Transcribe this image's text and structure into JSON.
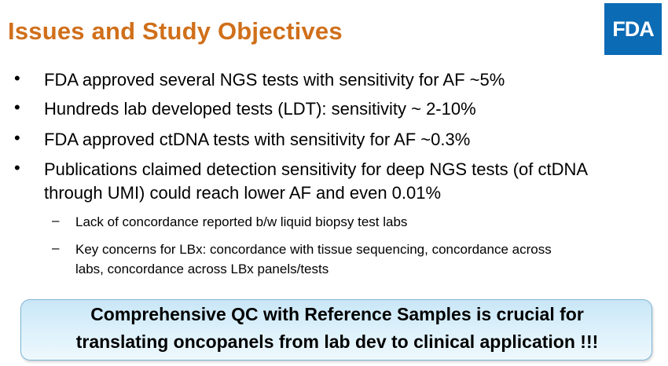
{
  "title": "Issues and Study Objectives",
  "logo": {
    "text": "FDA",
    "color": "#0b6bb5"
  },
  "bullets": [
    {
      "lines": [
        "FDA approved several NGS tests with sensitivity for AF ~5%"
      ]
    },
    {
      "lines": [
        "Hundreds lab developed tests (LDT): sensitivity ~ 2-10%"
      ]
    },
    {
      "lines": [
        "FDA approved ctDNA tests with sensitivity for AF ~0.3%"
      ]
    },
    {
      "lines": [
        "Publications claimed detection sensitivity for deep NGS tests (of ctDNA",
        "through UMI) could reach lower AF and even 0.01%"
      ]
    }
  ],
  "sub_bullets": [
    {
      "lines": [
        "Lack of concordance reported b/w liquid biopsy test labs"
      ]
    },
    {
      "lines": [
        "Key concerns for LBx: concordance with tissue sequencing, concordance across",
        "labs, concordance across LBx panels/tests"
      ]
    }
  ],
  "bullet_symbol": "•",
  "sub_symbol": "–",
  "callout": {
    "lines": [
      "Comprehensive QC with Reference Samples is crucial for",
      "translating oncopanels from lab dev to clinical application !!!"
    ]
  },
  "colors": {
    "title": "#d06f1a",
    "callout_bg": "#d6eef9"
  }
}
